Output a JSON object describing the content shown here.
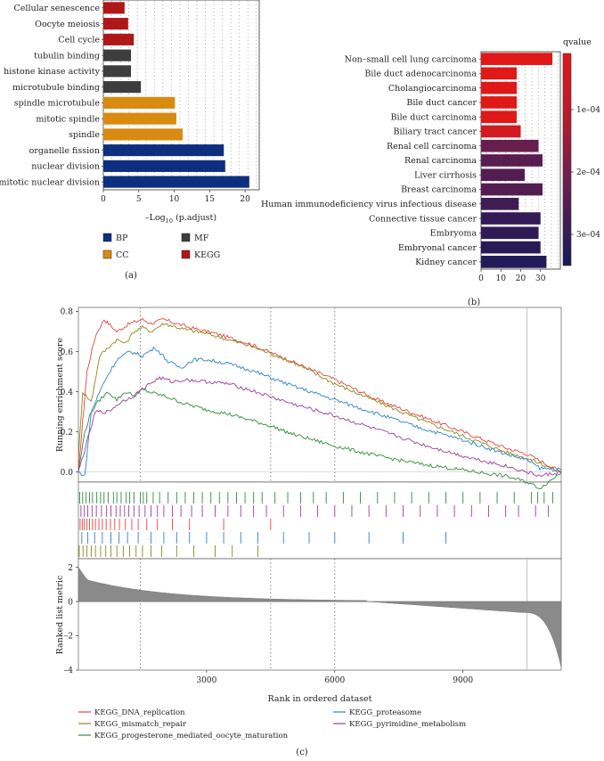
{
  "chart_data": [
    {
      "panel": "(a)",
      "type": "bar",
      "orientation": "horizontal",
      "categories": [
        "Cellular senescence",
        "Oocyte meiosis",
        "Cell cycle",
        "tubulin binding",
        "histone kinase activity",
        "microtubule binding",
        "spindle microtubule",
        "mitotic spindle",
        "spindle",
        "organelle fission",
        "nuclear division",
        "mitotic nuclear division"
      ],
      "values": [
        3.0,
        3.5,
        4.3,
        3.9,
        3.9,
        5.3,
        10.1,
        10.3,
        11.2,
        17.0,
        17.2,
        20.6
      ],
      "groups": [
        "KEGG",
        "KEGG",
        "KEGG",
        "MF",
        "MF",
        "MF",
        "CC",
        "CC",
        "CC",
        "BP",
        "BP",
        "BP"
      ],
      "xlabel": "–Log",
      "xlabel_sub": "10",
      "xlabel_tail": " (p.adjust)",
      "xlim": [
        0,
        22
      ],
      "xticks": [
        0,
        5,
        10,
        15,
        20
      ],
      "legend": [
        {
          "key": "BP",
          "label": "BP",
          "color": "#0d2f80"
        },
        {
          "key": "CC",
          "label": "CC",
          "color": "#d98b10"
        },
        {
          "key": "MF",
          "label": "MF",
          "color": "#3d3d3d"
        },
        {
          "key": "KEGG",
          "label": "KEGG",
          "color": "#b01818"
        }
      ],
      "panel_label": "(a)"
    },
    {
      "panel": "(b)",
      "type": "bar",
      "orientation": "horizontal",
      "categories": [
        "Non–small cell lung carcinoma",
        "Bile duct adenocarcinoma",
        "Cholangiocarcinoma",
        "Bile duct cancer",
        "Bile duct carcinoma",
        "Biliary tract cancer",
        "Renal cell carcinoma",
        "Renal carcinoma",
        "Liver cirrhosis",
        "Breast carcinoma",
        "Human immunodeficiency virus infectious disease",
        "Connective tissue cancer",
        "Embryoma",
        "Embryonal cancer",
        "Kidney cancer"
      ],
      "values": [
        36,
        18,
        18,
        18,
        18,
        20,
        29,
        31,
        22,
        31,
        19,
        30,
        29,
        30,
        33
      ],
      "qvalues": [
        1e-05,
        1e-05,
        1e-05,
        1e-05,
        1e-05,
        5e-05,
        0.00022,
        0.00024,
        0.00025,
        0.00025,
        0.00028,
        0.0003,
        0.00031,
        0.00032,
        0.00033
      ],
      "xlim": [
        0,
        40
      ],
      "xticks": [
        0,
        10,
        20,
        30
      ],
      "colorbar": {
        "title": "qvalue",
        "min": 1e-05,
        "max": 0.00035,
        "ticks": [
          "1e–04",
          "2e–04",
          "3e–04"
        ],
        "tick_values": [
          0.0001,
          0.0002,
          0.0003
        ]
      },
      "panel_label": "(b)"
    },
    {
      "panel": "(c)",
      "type": "line",
      "title": "",
      "ylabel": "Running enrichment score",
      "ylabel2": "Ranked list metric",
      "xlabel": "Rank in ordered dataset",
      "xlim": [
        0,
        11300
      ],
      "ylim": [
        -0.05,
        0.82
      ],
      "ylim2": [
        -4,
        2.5
      ],
      "yticks": [
        "0.0",
        "0.2",
        "0.4",
        "0.6",
        "0.8"
      ],
      "yticks2": [
        "2",
        "0",
        "–2",
        "–4"
      ],
      "xticks": [
        "3000",
        "6000",
        "9000"
      ],
      "vlines": [
        1450,
        4500,
        6000,
        10500
      ],
      "series": [
        {
          "name": "KEGG_DNA_replication",
          "color": "#e8433b",
          "x": [
            0,
            100,
            200,
            400,
            600,
            700,
            900,
            1200,
            1500,
            1700,
            2000,
            2600,
            3200,
            4000,
            5000,
            6000,
            7000,
            8000,
            9000,
            10000,
            10500,
            11300
          ],
          "values": [
            0.0,
            0.25,
            0.5,
            0.68,
            0.76,
            0.74,
            0.7,
            0.74,
            0.76,
            0.74,
            0.76,
            0.72,
            0.69,
            0.64,
            0.55,
            0.46,
            0.36,
            0.28,
            0.2,
            0.12,
            0.09,
            0.0
          ]
        },
        {
          "name": "KEGG_mismatch_repair",
          "color": "#8a8a1a",
          "x": [
            0,
            100,
            300,
            500,
            700,
            900,
            1100,
            1300,
            1500,
            1700,
            2000,
            2500,
            3000,
            4000,
            5000,
            6000,
            7000,
            8000,
            9000,
            10000,
            10500,
            11300
          ],
          "values": [
            0.07,
            0.4,
            0.35,
            0.58,
            0.62,
            0.66,
            0.64,
            0.7,
            0.72,
            0.7,
            0.74,
            0.71,
            0.69,
            0.63,
            0.55,
            0.44,
            0.35,
            0.26,
            0.18,
            0.1,
            0.07,
            0.0
          ]
        },
        {
          "name": "KEGG_progesterone_mediated_oocyte_maturation",
          "color": "#2e8b3a",
          "x": [
            0,
            150,
            300,
            500,
            700,
            900,
            1100,
            1300,
            1500,
            1800,
            2000,
            2500,
            3000,
            3500,
            4000,
            4500,
            5000,
            6000,
            7000,
            8000,
            9000,
            10000,
            10500,
            10800,
            11000,
            11300
          ],
          "values": [
            0.0,
            0.2,
            0.3,
            0.36,
            0.4,
            0.36,
            0.4,
            0.38,
            0.41,
            0.39,
            0.38,
            0.34,
            0.31,
            0.29,
            0.26,
            0.23,
            0.19,
            0.13,
            0.08,
            0.04,
            0.01,
            -0.02,
            -0.05,
            -0.08,
            -0.05,
            0.0
          ]
        },
        {
          "name": "KEGG_proteasome",
          "color": "#2c82c9",
          "x": [
            0,
            150,
            300,
            600,
            900,
            1200,
            1500,
            1800,
            2100,
            2400,
            2700,
            3000,
            3500,
            4000,
            5000,
            6000,
            7000,
            8000,
            9000,
            10000,
            10500,
            10800,
            11300
          ],
          "values": [
            0.0,
            -0.02,
            0.3,
            0.45,
            0.56,
            0.6,
            0.58,
            0.62,
            0.55,
            0.52,
            0.56,
            0.56,
            0.54,
            0.51,
            0.43,
            0.36,
            0.29,
            0.22,
            0.16,
            0.09,
            0.06,
            0.02,
            0.01
          ]
        },
        {
          "name": "KEGG_pyrimidine_metabolism",
          "color": "#9b3d9b",
          "x": [
            0,
            200,
            400,
            700,
            1000,
            1300,
            1600,
            1900,
            2200,
            2500,
            3000,
            3500,
            4000,
            5000,
            6000,
            7000,
            8000,
            9000,
            10000,
            10500,
            10800,
            11300
          ],
          "values": [
            0.0,
            0.15,
            0.3,
            0.3,
            0.35,
            0.38,
            0.43,
            0.47,
            0.45,
            0.46,
            0.45,
            0.44,
            0.41,
            0.34,
            0.28,
            0.21,
            0.14,
            0.08,
            0.03,
            0.0,
            -0.02,
            0.0
          ]
        }
      ],
      "hit_ranks": {
        "KEGG_progesterone_mediated_oocyte_maturation": [
          30,
          100,
          180,
          260,
          330,
          430,
          520,
          600,
          700,
          820,
          900,
          1000,
          1120,
          1200,
          1300,
          1450,
          1520,
          1600,
          1750,
          1900,
          2100,
          2300,
          2500,
          2700,
          2900,
          3100,
          3300,
          3500,
          3700,
          3900,
          4100,
          4300,
          4600,
          4900,
          5200,
          5500,
          5800,
          6200,
          6600,
          7000,
          7400,
          7800,
          8200,
          8600,
          9000,
          9400,
          9800,
          10200,
          10600,
          10750,
          10900,
          11100
        ],
        "KEGG_pyrimidine_metabolism": [
          60,
          140,
          220,
          320,
          420,
          540,
          660,
          760,
          880,
          980,
          1080,
          1180,
          1300,
          1420,
          1560,
          1700,
          1850,
          2000,
          2200,
          2400,
          2650,
          2900,
          3200,
          3500,
          3800,
          4100,
          4400,
          4800,
          5200,
          5600,
          6000,
          6400,
          6800,
          7200,
          7600,
          8000,
          8400,
          8800,
          9200,
          9600,
          10000,
          10300,
          10700,
          11000
        ],
        "KEGG_DNA_replication": [
          40,
          90,
          140,
          200,
          260,
          330,
          400,
          480,
          560,
          650,
          750,
          850,
          960,
          1100,
          1250,
          1400,
          1600,
          1850,
          2200,
          2600,
          3400,
          4500
        ],
        "KEGG_proteasome": [
          80,
          220,
          380,
          560,
          760,
          950,
          1150,
          1400,
          1700,
          2000,
          2300,
          2600,
          3000,
          3400,
          3800,
          4200,
          4800,
          5400,
          6000,
          6800,
          7600,
          8600
        ],
        "KEGG_mismatch_repair": [
          20,
          110,
          200,
          300,
          400,
          520,
          640,
          760,
          900,
          1050,
          1200,
          1350,
          1500,
          1700,
          1950,
          2300,
          2700,
          3200,
          3600,
          4200
        ]
      },
      "panel_label": "(c)"
    }
  ]
}
